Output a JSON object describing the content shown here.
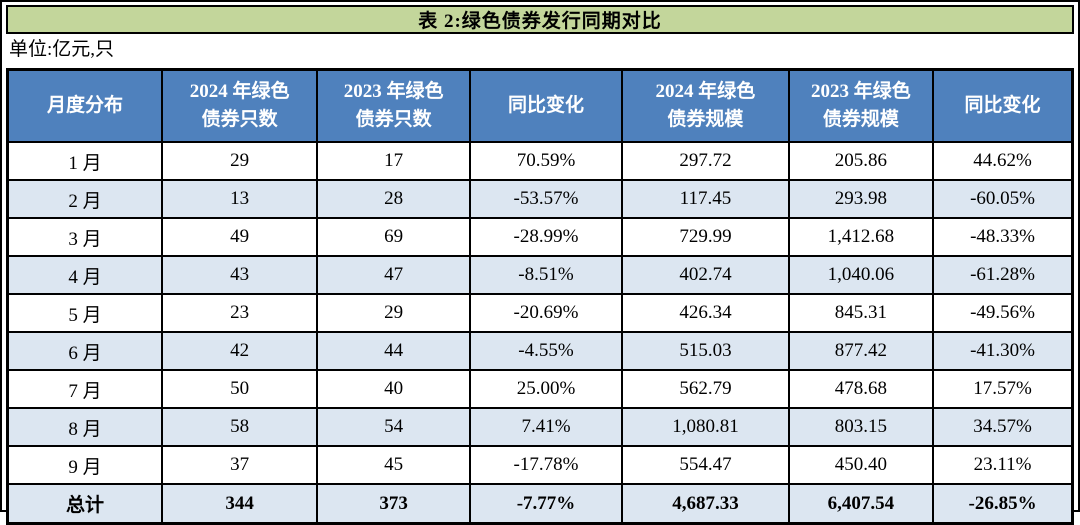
{
  "chart_data": {
    "type": "table",
    "title": "表 2:绿色债券发行同期对比",
    "unit": "单位:亿元,只",
    "columns": [
      {
        "lines": [
          "月度分布"
        ]
      },
      {
        "lines": [
          "2024 年绿色",
          "债券只数"
        ]
      },
      {
        "lines": [
          "2023 年绿色",
          "债券只数"
        ]
      },
      {
        "lines": [
          "同比变化"
        ]
      },
      {
        "lines": [
          "2024 年绿色",
          "债券规模"
        ]
      },
      {
        "lines": [
          "2023 年绿色",
          "债券规模"
        ]
      },
      {
        "lines": [
          "同比变化"
        ]
      }
    ],
    "rows": [
      [
        "1 月",
        "29",
        "17",
        "70.59%",
        "297.72",
        "205.86",
        "44.62%"
      ],
      [
        "2 月",
        "13",
        "28",
        "-53.57%",
        "117.45",
        "293.98",
        "-60.05%"
      ],
      [
        "3 月",
        "49",
        "69",
        "-28.99%",
        "729.99",
        "1,412.68",
        "-48.33%"
      ],
      [
        "4 月",
        "43",
        "47",
        "-8.51%",
        "402.74",
        "1,040.06",
        "-61.28%"
      ],
      [
        "5 月",
        "23",
        "29",
        "-20.69%",
        "426.34",
        "845.31",
        "-49.56%"
      ],
      [
        "6 月",
        "42",
        "44",
        "-4.55%",
        "515.03",
        "877.42",
        "-41.30%"
      ],
      [
        "7 月",
        "50",
        "40",
        "25.00%",
        "562.79",
        "478.68",
        "17.57%"
      ],
      [
        "8 月",
        "58",
        "54",
        "7.41%",
        "1,080.81",
        "803.15",
        "34.57%"
      ],
      [
        "9 月",
        "37",
        "45",
        "-17.78%",
        "554.47",
        "450.40",
        "23.11%"
      ]
    ],
    "total_row": [
      "总计",
      "344",
      "373",
      "-7.77%",
      "4,687.33",
      "6,407.54",
      "-26.85%"
    ],
    "layout_hints": {
      "alternating_rows": true,
      "gridlines": true,
      "header_position": "top"
    },
    "colors": {
      "title_bg": "#C3D69B",
      "header_bg": "#4F81BD",
      "header_text": "#FFFFFF",
      "row_alt_bg": "#DCE6F1",
      "row_bg": "#FFFFFF",
      "border": "#000000",
      "text": "#000000"
    }
  }
}
